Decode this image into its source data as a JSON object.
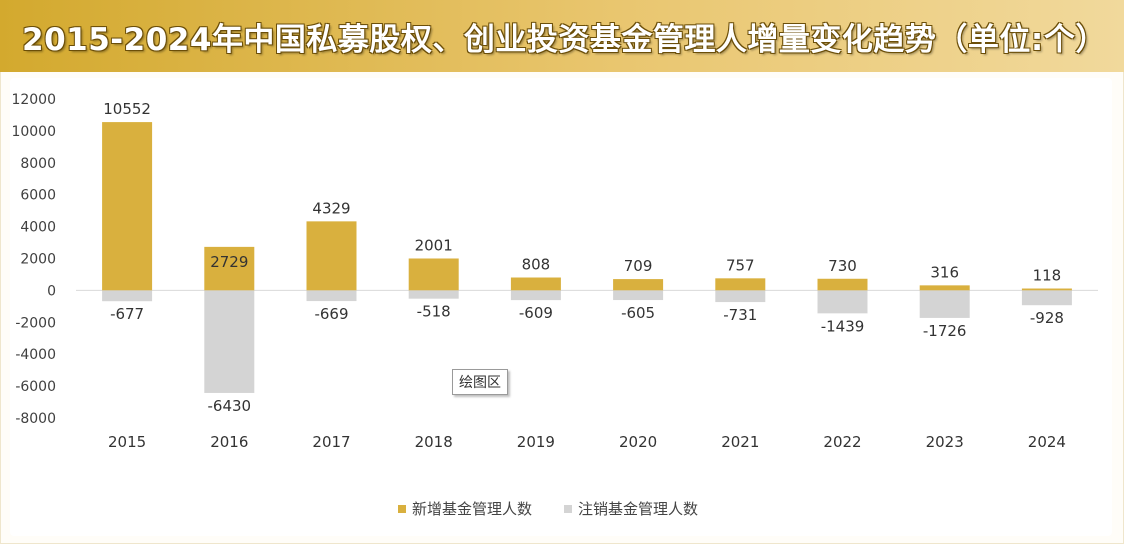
{
  "header": {
    "title": "2015-2024年中国私募股权、创业投资基金管理人增量变化趋势（单位:个）"
  },
  "tooltip": {
    "text": "绘图区"
  },
  "colors": {
    "added": "#d9b03e",
    "deregistered": "#d4d4d4",
    "title_bar": "#d9b03e"
  },
  "chart_data": {
    "type": "bar",
    "title": "2015-2024年中国私募股权、创业投资基金管理人增量变化趋势（单位:个）",
    "categories": [
      "2015",
      "2016",
      "2017",
      "2018",
      "2019",
      "2020",
      "2021",
      "2022",
      "2023",
      "2024"
    ],
    "series": [
      {
        "name": "新增基金管理人数",
        "values": [
          10552,
          2729,
          4329,
          2001,
          808,
          709,
          757,
          730,
          316,
          118
        ]
      },
      {
        "name": "注销基金管理人数",
        "values": [
          -677,
          -6430,
          -669,
          -518,
          -609,
          -605,
          -731,
          -1439,
          -1726,
          -928
        ]
      }
    ],
    "y_ticks": [
      "12000",
      "10000",
      "8000",
      "6000",
      "4000",
      "2000",
      "0",
      "-2000",
      "-4000",
      "-6000",
      "-8000"
    ],
    "ylim": [
      -8000,
      12000
    ],
    "grid": false,
    "legend_position": "bottom",
    "stacked": true
  }
}
